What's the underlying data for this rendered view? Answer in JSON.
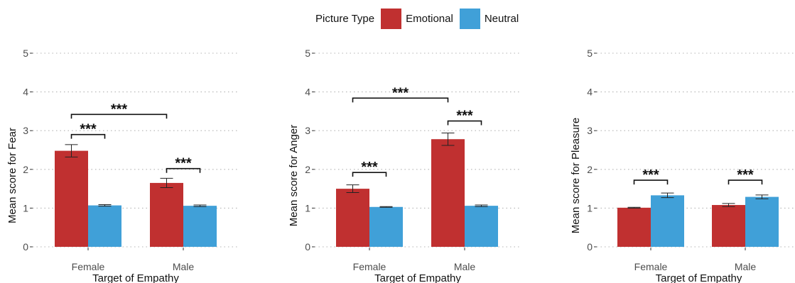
{
  "legend": {
    "title": "Picture Type",
    "items": [
      {
        "label": "Emotional",
        "color": "#c03030"
      },
      {
        "label": "Neutral",
        "color": "#40a0d8"
      }
    ]
  },
  "chart_data": [
    {
      "type": "bar",
      "xlabel": "Target of Empathy",
      "ylabel": "Mean score for Fear",
      "categories": [
        "Female",
        "Male"
      ],
      "ylim": [
        0,
        5
      ],
      "yticks": [
        "0",
        "1",
        "2",
        "3",
        "4",
        "5"
      ],
      "grid": "horizontal dotted",
      "series": [
        {
          "name": "Emotional",
          "color": "#c03030",
          "values": [
            2.48,
            1.65
          ],
          "errors": [
            0.16,
            0.12
          ]
        },
        {
          "name": "Neutral",
          "color": "#40a0d8",
          "values": [
            1.07,
            1.06
          ],
          "errors": [
            0.02,
            0.02
          ]
        }
      ],
      "significance": [
        {
          "label": "***",
          "from": [
            0,
            0
          ],
          "to": [
            0,
            1
          ],
          "y": 2.9
        },
        {
          "label": "***",
          "from": [
            1,
            0
          ],
          "to": [
            1,
            1
          ],
          "y": 2.02
        },
        {
          "label": "***",
          "from": [
            0,
            0
          ],
          "to": [
            1,
            0
          ],
          "y": 3.42
        }
      ]
    },
    {
      "type": "bar",
      "xlabel": "Target of Empathy",
      "ylabel": "Mean score for Anger",
      "categories": [
        "Female",
        "Male"
      ],
      "ylim": [
        0,
        5
      ],
      "yticks": [
        "0",
        "1",
        "2",
        "3",
        "4",
        "5"
      ],
      "grid": "horizontal dotted",
      "series": [
        {
          "name": "Emotional",
          "color": "#c03030",
          "values": [
            1.5,
            2.78
          ],
          "errors": [
            0.1,
            0.16
          ]
        },
        {
          "name": "Neutral",
          "color": "#40a0d8",
          "values": [
            1.03,
            1.06
          ],
          "errors": [
            0.01,
            0.02
          ]
        }
      ],
      "significance": [
        {
          "label": "***",
          "from": [
            0,
            0
          ],
          "to": [
            0,
            1
          ],
          "y": 1.92
        },
        {
          "label": "***",
          "from": [
            1,
            0
          ],
          "to": [
            1,
            1
          ],
          "y": 3.25
        },
        {
          "label": "***",
          "from": [
            0,
            0
          ],
          "to": [
            1,
            0
          ],
          "y": 3.84
        }
      ]
    },
    {
      "type": "bar",
      "xlabel": "Target of Empathy",
      "ylabel": "Mean score for Pleasure",
      "categories": [
        "Female",
        "Male"
      ],
      "ylim": [
        0,
        5
      ],
      "yticks": [
        "0",
        "1",
        "2",
        "3",
        "4",
        "5"
      ],
      "grid": "horizontal dotted",
      "series": [
        {
          "name": "Emotional",
          "color": "#c03030",
          "values": [
            1.01,
            1.08
          ],
          "errors": [
            0.01,
            0.04
          ]
        },
        {
          "name": "Neutral",
          "color": "#40a0d8",
          "values": [
            1.33,
            1.29
          ],
          "errors": [
            0.06,
            0.05
          ]
        }
      ],
      "significance": [
        {
          "label": "***",
          "from": [
            0,
            0
          ],
          "to": [
            0,
            1
          ],
          "y": 1.72
        },
        {
          "label": "***",
          "from": [
            1,
            0
          ],
          "to": [
            1,
            1
          ],
          "y": 1.72
        }
      ]
    }
  ]
}
